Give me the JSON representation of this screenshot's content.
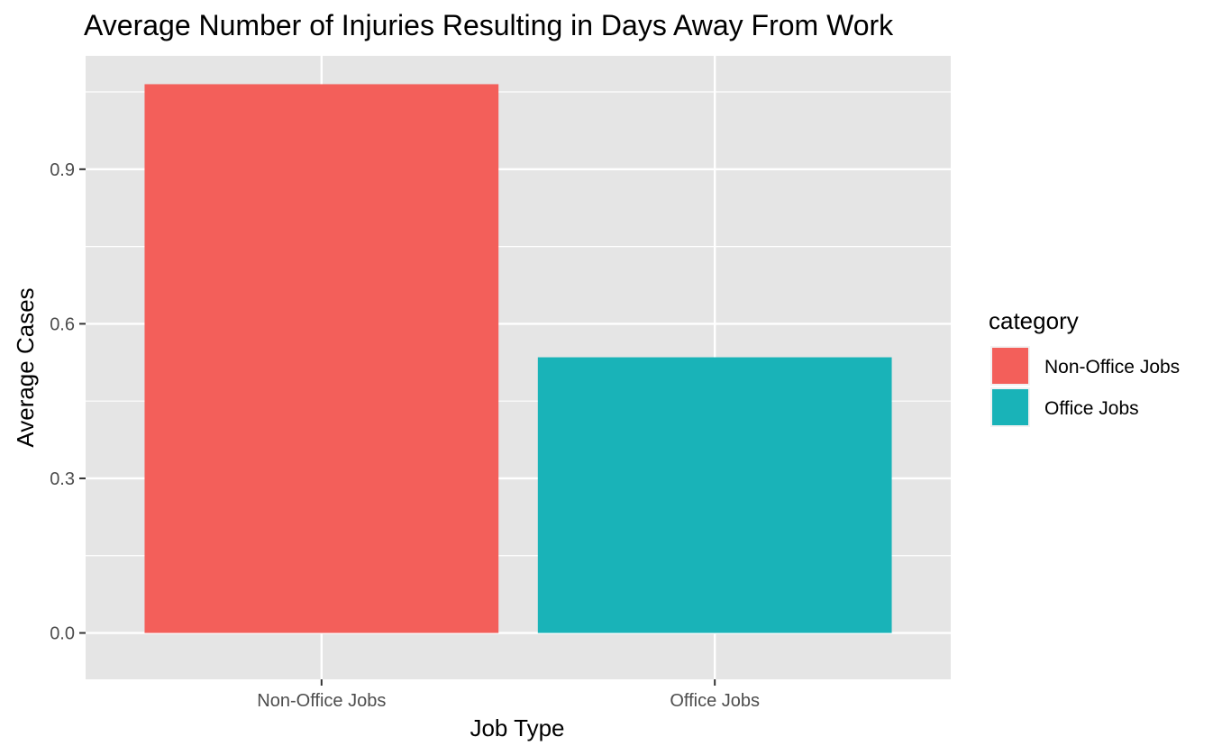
{
  "chart_data": {
    "type": "bar",
    "title": "Average Number of Injuries Resulting in Days Away From Work",
    "xlabel": "Job Type",
    "ylabel": "Average Cases",
    "categories": [
      "Non-Office Jobs",
      "Office Jobs"
    ],
    "values": [
      1.065,
      0.535
    ],
    "colors": [
      "#f35f5a",
      "#19b3b8"
    ],
    "ylim": [
      -0.09,
      1.12
    ],
    "yticks": [
      0.0,
      0.3,
      0.6,
      0.9
    ],
    "ytick_labels": [
      "0.0",
      "0.3",
      "0.6",
      "0.9"
    ],
    "grid": true,
    "legend": {
      "title": "category",
      "position": "right",
      "entries": [
        "Non-Office Jobs",
        "Office Jobs"
      ]
    },
    "panel_background": "#e5e5e5",
    "grid_color": "#ffffff",
    "tick_color": "#333333"
  }
}
